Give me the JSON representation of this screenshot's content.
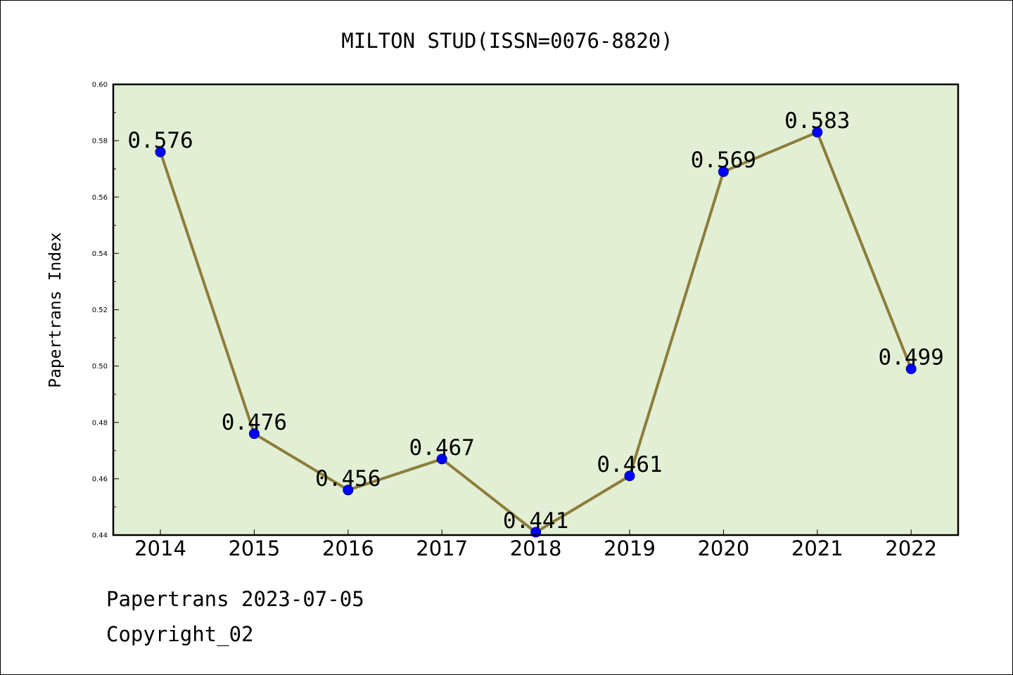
{
  "footer": {
    "source": "Papertrans 2023-07-05",
    "copyright": "Copyright_02"
  },
  "chart_data": {
    "type": "line",
    "title": "MILTON STUD(ISSN=0076-8820)",
    "xlabel": "",
    "ylabel": "Papertrans Index",
    "categories": [
      "2014",
      "2015",
      "2016",
      "2017",
      "2018",
      "2019",
      "2020",
      "2021",
      "2022"
    ],
    "series": [
      {
        "values": [
          0.576,
          0.476,
          0.456,
          0.467,
          0.441,
          0.461,
          0.569,
          0.583,
          0.499
        ],
        "data_labels": [
          "0.576",
          "0.476",
          "0.456",
          "0.467",
          "0.441",
          "0.461",
          "0.569",
          "0.583",
          "0.499"
        ]
      }
    ],
    "ylim": [
      0.44,
      0.6
    ],
    "yticks": [
      "0.44",
      "0.46",
      "0.48",
      "0.50",
      "0.52",
      "0.54",
      "0.56",
      "0.58",
      "0.60"
    ],
    "grid": false,
    "legend": "none",
    "colors": {
      "line": "#8c7d3a",
      "marker": "#0000ff",
      "plot_background": "#e2efd4"
    }
  }
}
